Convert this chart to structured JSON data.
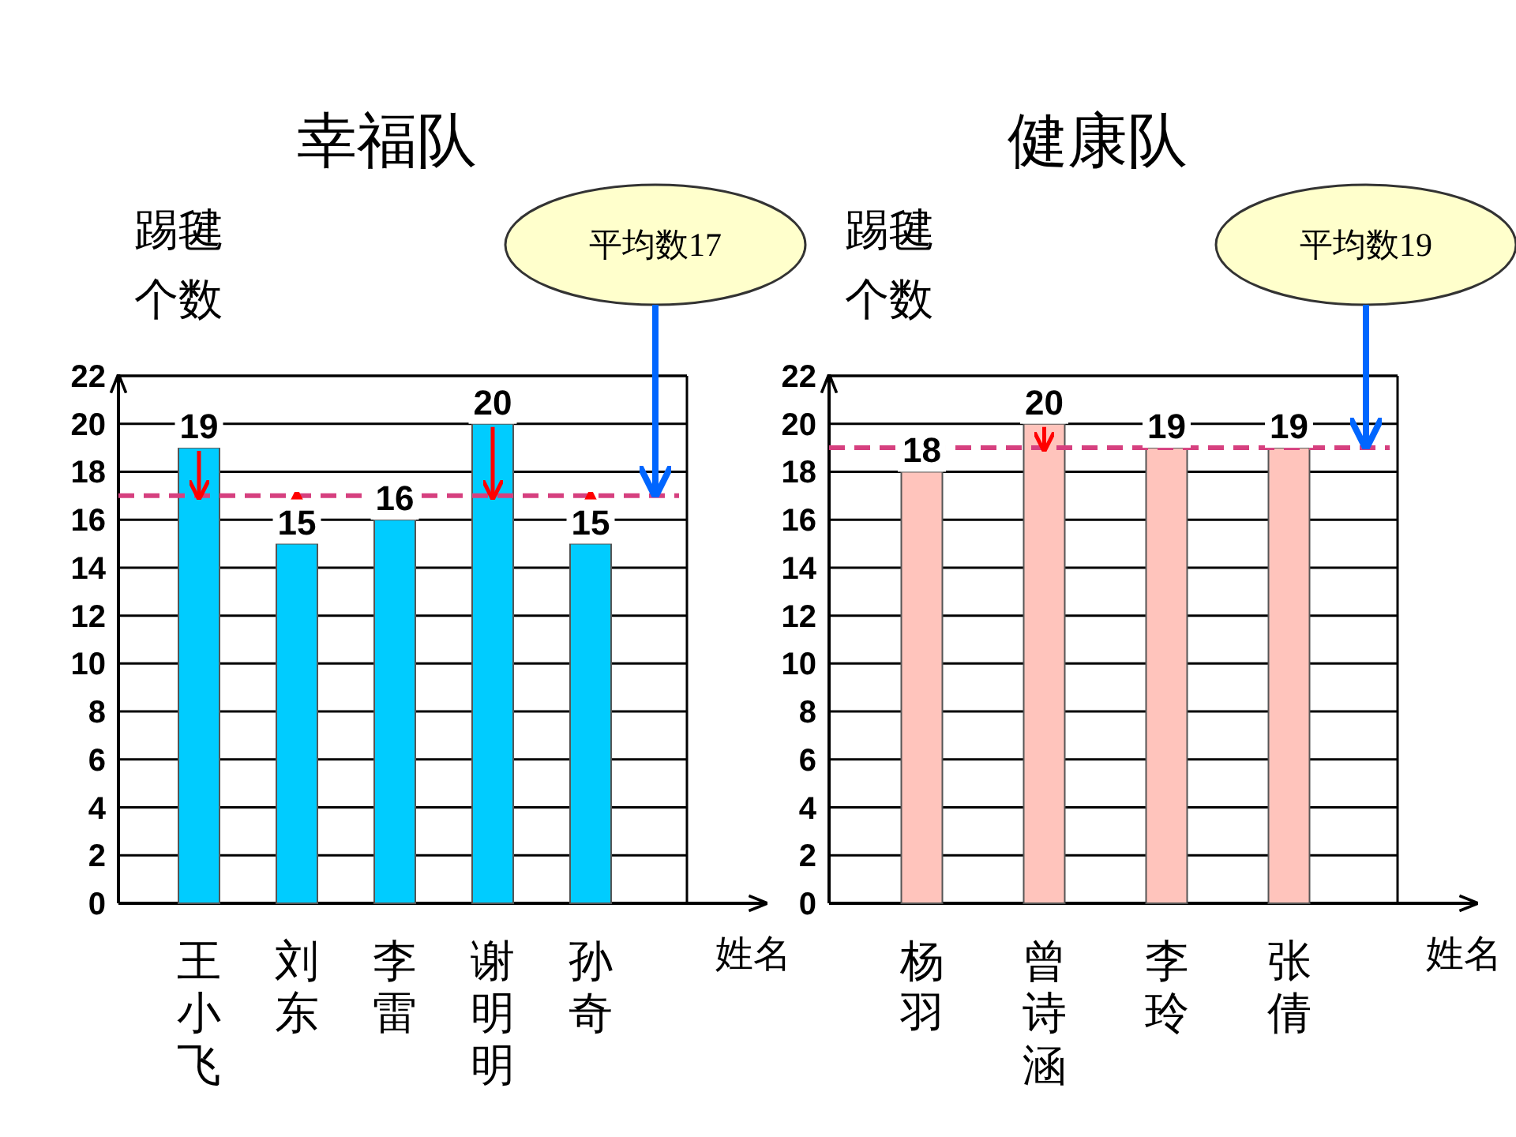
{
  "chart_data": [
    {
      "type": "bar",
      "title": "幸福队",
      "xlabel": "姓名",
      "ylabel": "踢毽个数",
      "categories": [
        "王小飞",
        "刘东",
        "李雷",
        "谢明明",
        "孙奇"
      ],
      "values": [
        19,
        15,
        16,
        20,
        15
      ],
      "color": "#00ccff",
      "ylim": [
        0,
        22
      ],
      "yticks": [
        0,
        2,
        4,
        6,
        8,
        10,
        12,
        14,
        16,
        18,
        20,
        22
      ],
      "grid": "y",
      "data_labels": true,
      "ref_lines": [
        {
          "axis": "y",
          "value": 17,
          "label": "平均数17",
          "color": "#d6407f",
          "line_style": "dashed"
        }
      ]
    },
    {
      "type": "bar",
      "title": "健康队",
      "xlabel": "姓名",
      "ylabel": "踢毽个数",
      "categories": [
        "杨羽",
        "曾诗涵",
        "李玲",
        "张倩"
      ],
      "values": [
        18,
        20,
        19,
        19
      ],
      "color": "#ffc4bc",
      "ylim": [
        0,
        22
      ],
      "yticks": [
        0,
        2,
        4,
        6,
        8,
        10,
        12,
        14,
        16,
        18,
        20,
        22
      ],
      "grid": "y",
      "data_labels": true,
      "ref_lines": [
        {
          "axis": "y",
          "value": 19,
          "label": "平均数19",
          "color": "#d6407f",
          "line_style": "dashed"
        }
      ]
    }
  ]
}
